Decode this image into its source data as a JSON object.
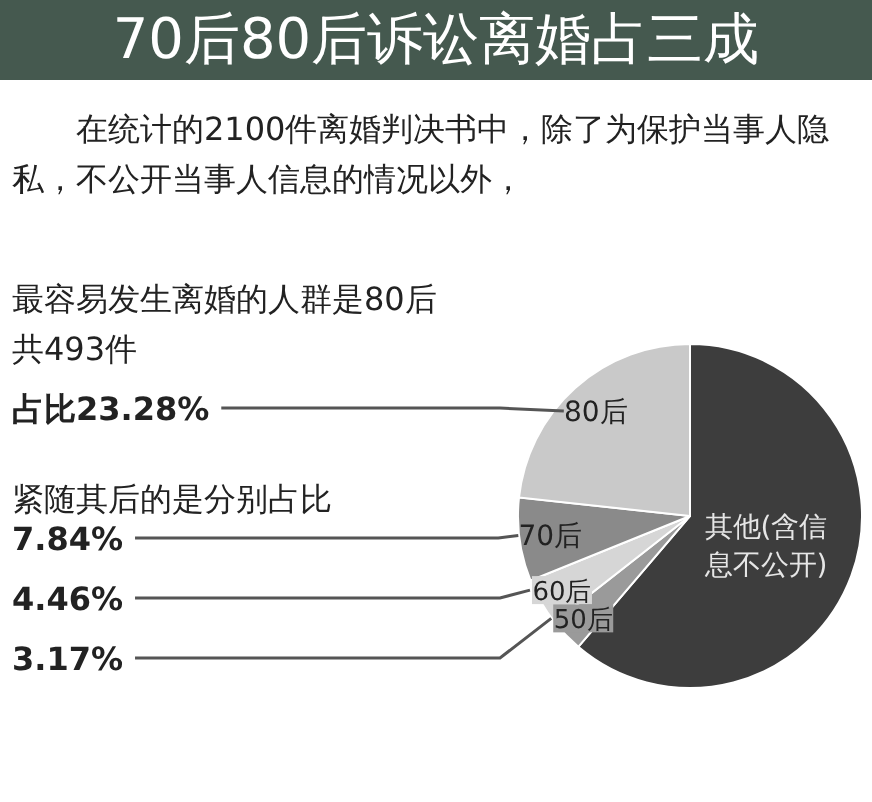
{
  "chart_data": {
    "type": "pie",
    "title": "70后80后诉讼离婚占三成",
    "subtitle": "在统计的2100件离婚判决书中，除了为保护当事人隐私，不公开当事人信息的情况以外，",
    "categories": [
      "其他(含信息不公开)",
      "50后",
      "60后",
      "70后",
      "80后"
    ],
    "values": [
      61.25,
      3.17,
      4.46,
      7.84,
      23.28
    ],
    "colors": [
      "#3d3d3d",
      "#9a9a9a",
      "#d6d6d6",
      "#8a8a8a",
      "#c9c9c9"
    ],
    "value_labels": [
      null,
      "3.17%",
      "4.46%",
      "7.84%",
      "占比23.28%"
    ],
    "annotations": [
      "最容易发生离婚的人群是80后",
      "共493件",
      "紧随其后的是分别占比"
    ]
  }
}
